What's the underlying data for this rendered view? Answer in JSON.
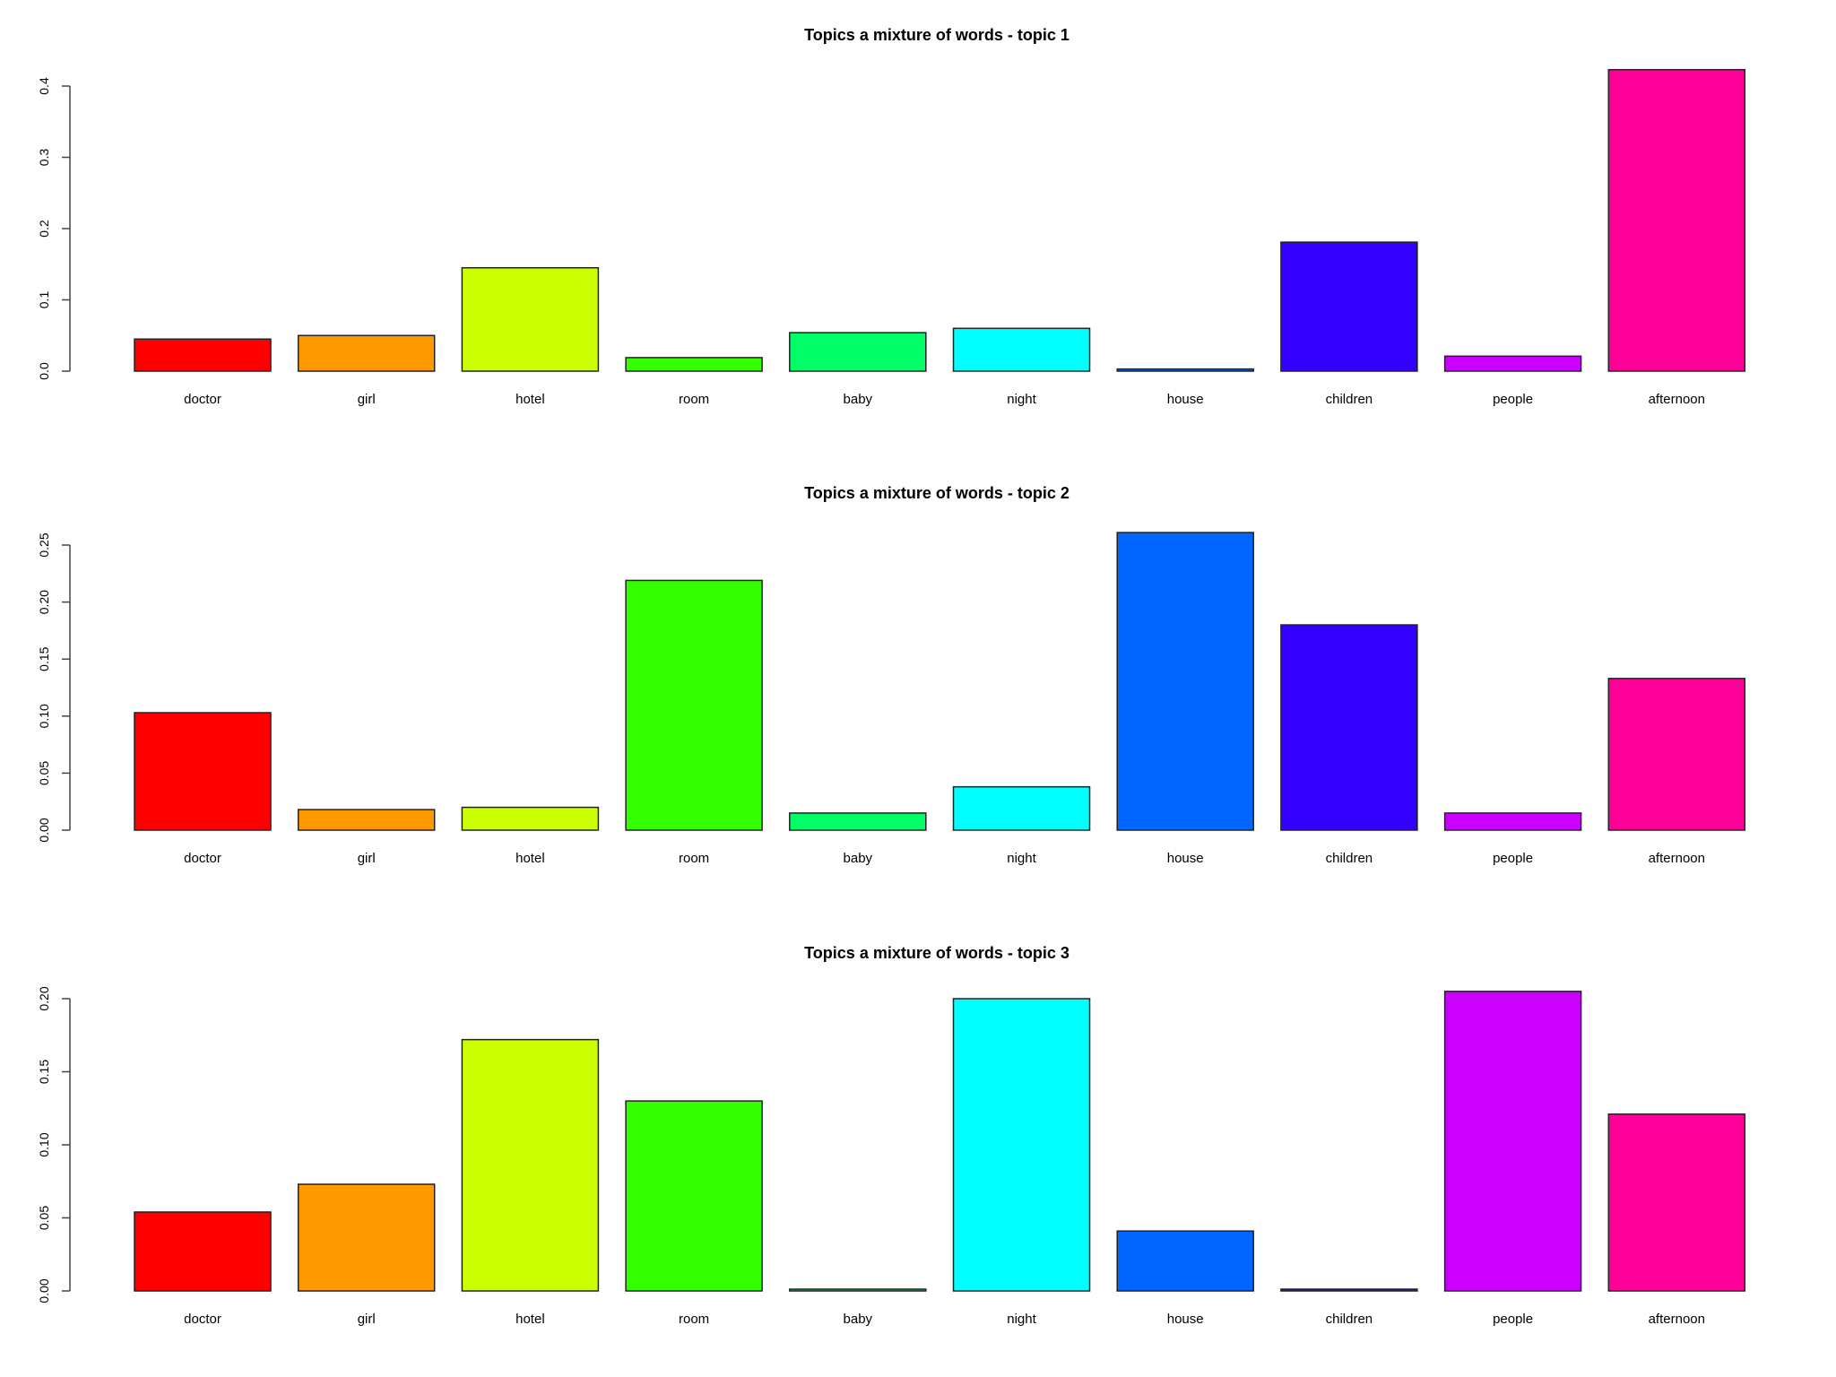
{
  "chart_data": [
    {
      "type": "bar",
      "title": "Topics a mixture of words - topic 1",
      "categories": [
        "doctor",
        "girl",
        "hotel",
        "room",
        "baby",
        "night",
        "house",
        "children",
        "people",
        "afternoon"
      ],
      "values": [
        0.045,
        0.05,
        0.145,
        0.019,
        0.054,
        0.06,
        0.003,
        0.181,
        0.021,
        0.423
      ],
      "yticks": [
        "0.0",
        "0.1",
        "0.2",
        "0.3",
        "0.4"
      ],
      "ylim": [
        0,
        0.4
      ],
      "xlabel": "",
      "ylabel": ""
    },
    {
      "type": "bar",
      "title": "Topics a mixture of words - topic 2",
      "categories": [
        "doctor",
        "girl",
        "hotel",
        "room",
        "baby",
        "night",
        "house",
        "children",
        "people",
        "afternoon"
      ],
      "values": [
        0.103,
        0.018,
        0.02,
        0.219,
        0.015,
        0.038,
        0.261,
        0.18,
        0.015,
        0.133
      ],
      "yticks": [
        "0.00",
        "0.05",
        "0.10",
        "0.15",
        "0.20",
        "0.25"
      ],
      "ylim": [
        0,
        0.25
      ],
      "xlabel": "",
      "ylabel": ""
    },
    {
      "type": "bar",
      "title": "Topics a mixture of words - topic 3",
      "categories": [
        "doctor",
        "girl",
        "hotel",
        "room",
        "baby",
        "night",
        "house",
        "children",
        "people",
        "afternoon"
      ],
      "values": [
        0.054,
        0.073,
        0.172,
        0.13,
        0.001,
        0.2,
        0.041,
        0.001,
        0.205,
        0.121
      ],
      "yticks": [
        "0.00",
        "0.05",
        "0.10",
        "0.15",
        "0.20"
      ],
      "ylim": [
        0,
        0.2
      ],
      "xlabel": "",
      "ylabel": ""
    }
  ],
  "colors": [
    "#ff0000",
    "#ff9900",
    "#ccff00",
    "#33ff00",
    "#00ff66",
    "#00ffff",
    "#0066ff",
    "#3300ff",
    "#cc00ff",
    "#ff0099"
  ]
}
